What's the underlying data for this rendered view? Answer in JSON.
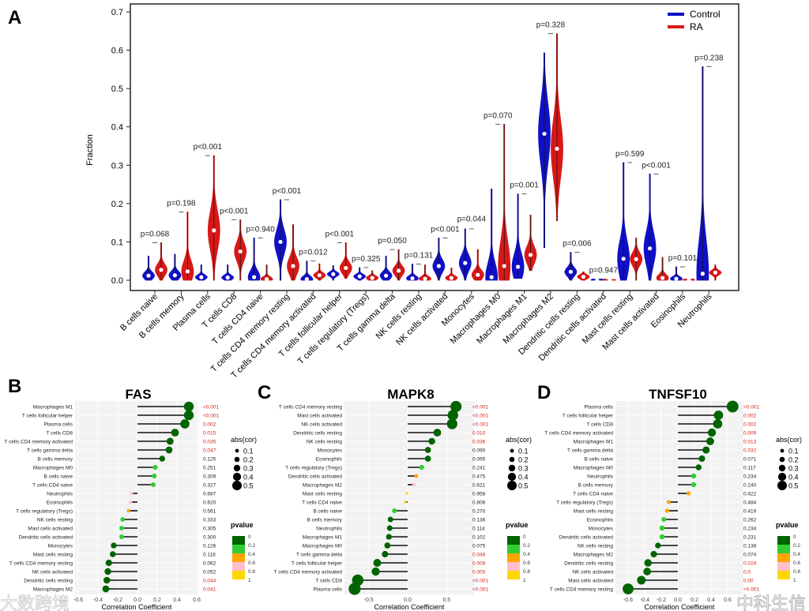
{
  "panel_letters": {
    "a": "A",
    "b": "B",
    "c": "C",
    "d": "D"
  },
  "watermarks": [
    "大数跨境",
    "中科生信"
  ],
  "chart_data": [
    {
      "type": "violin",
      "panel": "A",
      "ylabel": "Fraction",
      "ylim": [
        0,
        0.7
      ],
      "yticks": [
        "0.0",
        "0.1",
        "0.2",
        "0.3",
        "0.4",
        "0.5",
        "0.6",
        "0.7"
      ],
      "legend": {
        "placement": "top-right",
        "entries": [
          {
            "name": "Control",
            "color": "#1010c8"
          },
          {
            "name": "RA",
            "color": "#d81818"
          }
        ]
      },
      "categories": [
        {
          "name": "B cells naive",
          "p": "p=0.068",
          "control": {
            "max": 0.063,
            "median": 0.012,
            "min": 0
          },
          "ra": {
            "max": 0.098,
            "median": 0.027,
            "min": 0
          }
        },
        {
          "name": "B cells memory",
          "p": "p=0.198",
          "control": {
            "max": 0.068,
            "median": 0.013,
            "min": 0
          },
          "ra": {
            "max": 0.178,
            "median": 0.023,
            "min": 0
          }
        },
        {
          "name": "Plasma cells",
          "p": "p<0.001",
          "control": {
            "max": 0.04,
            "median": 0.008,
            "min": 0
          },
          "ra": {
            "max": 0.325,
            "median": 0.13,
            "min": 0
          }
        },
        {
          "name": "T cells CD8",
          "p": "p<0.001",
          "control": {
            "max": 0.04,
            "median": 0.007,
            "min": 0
          },
          "ra": {
            "max": 0.158,
            "median": 0.075,
            "min": 0
          }
        },
        {
          "name": "T cells CD4 naive",
          "p": "p=0.940",
          "control": {
            "max": 0.11,
            "median": 0.008,
            "min": 0
          },
          "ra": {
            "max": 0.04,
            "median": 0.003,
            "min": 0
          }
        },
        {
          "name": "T cells CD4 memory resting",
          "p": "p<0.001",
          "control": {
            "max": 0.21,
            "median": 0.1,
            "min": 0
          },
          "ra": {
            "max": 0.145,
            "median": 0.037,
            "min": 0
          }
        },
        {
          "name": "T cells CD4 memory activated",
          "p": "p=0.012",
          "control": {
            "max": 0.05,
            "median": 0.003,
            "min": 0
          },
          "ra": {
            "max": 0.043,
            "median": 0.013,
            "min": 0
          }
        },
        {
          "name": "T cells follicular helper",
          "p": "p<0.001",
          "control": {
            "max": 0.038,
            "median": 0.016,
            "min": 0
          },
          "ra": {
            "max": 0.098,
            "median": 0.032,
            "min": 0.005
          }
        },
        {
          "name": "T cells regulatory (Tregs)",
          "p": "p=0.325",
          "control": {
            "max": 0.033,
            "median": 0.01,
            "min": 0
          },
          "ra": {
            "max": 0.025,
            "median": 0.006,
            "min": 0
          }
        },
        {
          "name": "T cells gamma delta",
          "p": "p=0.050",
          "control": {
            "max": 0.063,
            "median": 0.012,
            "min": 0
          },
          "ra": {
            "max": 0.08,
            "median": 0.025,
            "min": 0
          }
        },
        {
          "name": "NK cells resting",
          "p": "p=0.131",
          "control": {
            "max": 0.042,
            "median": 0.005,
            "min": 0
          },
          "ra": {
            "max": 0.04,
            "median": 0.004,
            "min": 0
          }
        },
        {
          "name": "NK cells activated",
          "p": "p<0.001",
          "control": {
            "max": 0.11,
            "median": 0.037,
            "min": 0
          },
          "ra": {
            "max": 0.032,
            "median": 0.006,
            "min": 0
          }
        },
        {
          "name": "Monocytes",
          "p": "p=0.044",
          "control": {
            "max": 0.134,
            "median": 0.045,
            "min": 0
          },
          "ra": {
            "max": 0.08,
            "median": 0.014,
            "min": 0
          }
        },
        {
          "name": "Macrophages M0",
          "p": "p=0.070",
          "control": {
            "max": 0.238,
            "median": 0.008,
            "min": 0
          },
          "ra": {
            "max": 0.407,
            "median": 0.037,
            "min": 0
          }
        },
        {
          "name": "Macrophages M1",
          "p": "p=0.001",
          "control": {
            "max": 0.225,
            "median": 0.035,
            "min": 0.005
          },
          "ra": {
            "max": 0.17,
            "median": 0.066,
            "min": 0.025
          }
        },
        {
          "name": "Macrophages M2",
          "p": "p=0.328",
          "control": {
            "max": 0.593,
            "median": 0.382,
            "min": 0.085
          },
          "ra": {
            "max": 0.643,
            "median": 0.343,
            "min": 0.155
          }
        },
        {
          "name": "Dendritic cells resting",
          "p": "p=0.006",
          "control": {
            "max": 0.073,
            "median": 0.022,
            "min": 0
          },
          "ra": {
            "max": 0.022,
            "median": 0.009,
            "min": 0
          }
        },
        {
          "name": "Dendritic cells activated",
          "p": "p=0.947",
          "control": {
            "max": 0.003,
            "median": 0,
            "min": 0
          },
          "ra": {
            "max": 0.002,
            "median": 0,
            "min": 0
          }
        },
        {
          "name": "Mast cells resting",
          "p": "p=0.599",
          "control": {
            "max": 0.307,
            "median": 0.056,
            "min": 0
          },
          "ra": {
            "max": 0.11,
            "median": 0.055,
            "min": 0
          }
        },
        {
          "name": "Mast cells activated",
          "p": "p<0.001",
          "control": {
            "max": 0.277,
            "median": 0.083,
            "min": 0
          },
          "ra": {
            "max": 0.06,
            "median": 0.006,
            "min": 0
          }
        },
        {
          "name": "Eosinophils",
          "p": "p=0.101",
          "control": {
            "max": 0.035,
            "median": 0.004,
            "min": 0
          },
          "ra": {
            "max": 0.003,
            "median": 0,
            "min": 0
          }
        },
        {
          "name": "Neutrophils",
          "p": "p=0.238",
          "control": {
            "max": 0.557,
            "median": 0.017,
            "min": 0
          },
          "ra": {
            "max": 0.04,
            "median": 0.02,
            "min": 0
          }
        }
      ]
    },
    {
      "type": "lollipop",
      "panel": "B",
      "title": "FAS",
      "xlabel": "Correlation Coefficient",
      "xticks": [
        -0.6,
        -0.4,
        -0.2,
        0.0,
        0.2,
        0.4,
        0.6
      ],
      "xtick_labels": [
        "-0.6",
        "-0.4",
        "-0.2",
        "0.0",
        "0.2",
        "0.4",
        "0.6"
      ],
      "rows": [
        {
          "cell": "Macrophages M1",
          "cor": 0.52,
          "p": "<0.001"
        },
        {
          "cell": "T cells follicular helper",
          "cor": 0.52,
          "p": "<0.001"
        },
        {
          "cell": "Plasma cells",
          "cor": 0.48,
          "p": "0.002"
        },
        {
          "cell": "T cells CD8",
          "cor": 0.38,
          "p": "0.015"
        },
        {
          "cell": "T cells CD4 memory activated",
          "cor": 0.33,
          "p": "0.035"
        },
        {
          "cell": "T cells gamma delta",
          "cor": 0.32,
          "p": "0.047"
        },
        {
          "cell": "B cells memory",
          "cor": 0.25,
          "p": "0.125"
        },
        {
          "cell": "Macrophages M0",
          "cor": 0.18,
          "p": "0.251"
        },
        {
          "cell": "B cells naive",
          "cor": 0.17,
          "p": "0.309"
        },
        {
          "cell": "T cells CD4 naive",
          "cor": 0.16,
          "p": "0.327"
        },
        {
          "cell": "Neutrophils",
          "cor": -0.06,
          "p": "0.687"
        },
        {
          "cell": "Eosinophils",
          "cor": -0.07,
          "p": "0.620"
        },
        {
          "cell": "T cells regulatory (Tregs)",
          "cor": -0.09,
          "p": "0.561"
        },
        {
          "cell": "NK cells resting",
          "cor": -0.15,
          "p": "0.333"
        },
        {
          "cell": "Mast cells activated",
          "cor": -0.16,
          "p": "0.305"
        },
        {
          "cell": "Dendritic cells activated",
          "cor": -0.16,
          "p": "0.300"
        },
        {
          "cell": "Monocytes",
          "cor": -0.24,
          "p": "0.126"
        },
        {
          "cell": "Mast cells resting",
          "cor": -0.25,
          "p": "0.118"
        },
        {
          "cell": "T cells CD4 memory resting",
          "cor": -0.29,
          "p": "0.062"
        },
        {
          "cell": "NK cells activated",
          "cor": -0.3,
          "p": "0.052"
        },
        {
          "cell": "Dendritic cells resting",
          "cor": -0.31,
          "p": "0.044"
        },
        {
          "cell": "Macrophages M2",
          "cor": -0.32,
          "p": "0.041"
        }
      ]
    },
    {
      "type": "lollipop",
      "panel": "C",
      "title": "MAPK8",
      "xlabel": "Correlation Coefficient",
      "xticks": [
        -0.5,
        0.0,
        0.5
      ],
      "xtick_labels": [
        "-0.5",
        "0.0",
        "0.5"
      ],
      "rows": [
        {
          "cell": "T cells CD4 memory resting",
          "cor": 0.62,
          "p": "<0.001"
        },
        {
          "cell": "Mast cells activated",
          "cor": 0.58,
          "p": "<0.001"
        },
        {
          "cell": "NK cells activated",
          "cor": 0.57,
          "p": "<0.001"
        },
        {
          "cell": "Dendritic cells resting",
          "cor": 0.38,
          "p": "0.010"
        },
        {
          "cell": "NK cells resting",
          "cor": 0.31,
          "p": "0.036"
        },
        {
          "cell": "Monocytes",
          "cor": 0.26,
          "p": "0.090"
        },
        {
          "cell": "Eosinophils",
          "cor": 0.26,
          "p": "0.095"
        },
        {
          "cell": "T cells regulatory (Tregs)",
          "cor": 0.18,
          "p": "0.241"
        },
        {
          "cell": "Dendritic cells activated",
          "cor": 0.11,
          "p": "0.475"
        },
        {
          "cell": "Macrophages M2",
          "cor": 0.08,
          "p": "0.621"
        },
        {
          "cell": "Mast cells resting",
          "cor": -0.01,
          "p": "0.958"
        },
        {
          "cell": "T cells CD4 naive",
          "cor": -0.03,
          "p": "0.808"
        },
        {
          "cell": "B cells naive",
          "cor": -0.17,
          "p": "0.270"
        },
        {
          "cell": "B cells memory",
          "cor": -0.22,
          "p": "0.136"
        },
        {
          "cell": "Neutrophils",
          "cor": -0.23,
          "p": "0.114"
        },
        {
          "cell": "Macrophages M1",
          "cor": -0.24,
          "p": "0.102"
        },
        {
          "cell": "Macrophages M0",
          "cor": -0.26,
          "p": "0.075"
        },
        {
          "cell": "T cells gamma delta",
          "cor": -0.29,
          "p": "0.048"
        },
        {
          "cell": "T cells follicular helper",
          "cor": -0.39,
          "p": "0.008"
        },
        {
          "cell": "T cells CD4 memory activated",
          "cor": -0.41,
          "p": "0.005"
        },
        {
          "cell": "T cells CD8",
          "cor": -0.64,
          "p": "<0.001"
        },
        {
          "cell": "Plasma cells",
          "cor": -0.68,
          "p": "<0.001"
        }
      ]
    },
    {
      "type": "lollipop",
      "panel": "D",
      "title": "TNFSF10",
      "xlabel": "Correlation Coefficient",
      "xticks": [
        -0.6,
        -0.4,
        -0.2,
        0.0,
        0.2,
        0.4,
        0.6
      ],
      "xtick_labels": [
        "-0.6",
        "-0.4",
        "-0.2",
        "0.0",
        "0.2",
        "0.4",
        "0.6"
      ],
      "rows": [
        {
          "cell": "Plasma cells",
          "cor": 0.66,
          "p": "<0.001"
        },
        {
          "cell": "T cells follicular helper",
          "cor": 0.49,
          "p": "0.002"
        },
        {
          "cell": "T cells CD8",
          "cor": 0.48,
          "p": "0.002"
        },
        {
          "cell": "T cells CD4 memory activated",
          "cor": 0.41,
          "p": "0.009"
        },
        {
          "cell": "Macrophages M1",
          "cor": 0.39,
          "p": "0.013"
        },
        {
          "cell": "T cells gamma delta",
          "cor": 0.34,
          "p": "0.032"
        },
        {
          "cell": "B cells naive",
          "cor": 0.29,
          "p": "0.071"
        },
        {
          "cell": "Macrophages M0",
          "cor": 0.25,
          "p": "0.117"
        },
        {
          "cell": "Neutrophils",
          "cor": 0.19,
          "p": "0.234"
        },
        {
          "cell": "B cells memory",
          "cor": 0.19,
          "p": "0.240"
        },
        {
          "cell": "T cells CD4 naive",
          "cor": 0.13,
          "p": "0.422"
        },
        {
          "cell": "T cells regulatory (Tregs)",
          "cor": -0.11,
          "p": "0.484"
        },
        {
          "cell": "Mast cells resting",
          "cor": -0.13,
          "p": "0.419"
        },
        {
          "cell": "Eosinophils",
          "cor": -0.17,
          "p": "0.262"
        },
        {
          "cell": "Monocytes",
          "cor": -0.19,
          "p": "0.234"
        },
        {
          "cell": "Dendritic cells activated",
          "cor": -0.19,
          "p": "0.231"
        },
        {
          "cell": "NK cells resting",
          "cor": -0.24,
          "p": "0.138"
        },
        {
          "cell": "Macrophages M2",
          "cor": -0.29,
          "p": "0.074"
        },
        {
          "cell": "Dendritic cells resting",
          "cor": -0.36,
          "p": "0.024"
        },
        {
          "cell": "NK cells activated",
          "cor": -0.37,
          "p": "0.0"
        },
        {
          "cell": "Mast cells activated",
          "cor": -0.44,
          "p": "0.00"
        },
        {
          "cell": "T cells CD4 memory resting",
          "cor": -0.6,
          "p": "<0.001"
        }
      ]
    }
  ],
  "legend_size": {
    "title": "abs(cor)",
    "values": [
      "0.1",
      "0.2",
      "0.3",
      "0.4",
      "0.5"
    ]
  },
  "legend_pvalue": {
    "title": "pvalue",
    "labels": [
      "0",
      "0.2",
      "0.4",
      "0.6",
      "0.8",
      "1"
    ],
    "colors": [
      "#006400",
      "#32cd32",
      "#ffa500",
      "#ffc0cb",
      "#ffd700"
    ]
  },
  "colors": {
    "significant_p": "#d42020",
    "other_p": "#222222",
    "control": "#1010c8",
    "ra": "#d81818",
    "stem": "#111111"
  }
}
